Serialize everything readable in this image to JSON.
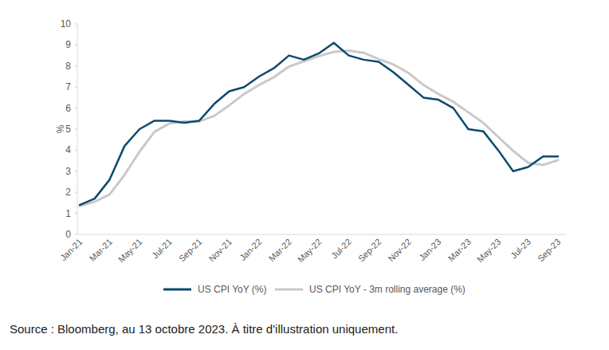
{
  "chart_data": {
    "type": "line",
    "y_label": "%",
    "source": "Source : Bloomberg, au 13 octobre 2023. À titre d'illustration uniquement.",
    "categories": [
      "Jan-21",
      null,
      "Mar-21",
      null,
      "May-21",
      null,
      "Jul-21",
      null,
      "Sep-21",
      null,
      "Nov-21",
      null,
      "Jan-22",
      null,
      "Mar-22",
      null,
      "May-22",
      null,
      "Jul-22",
      null,
      "Sep-22",
      null,
      "Nov-22",
      null,
      "Jan-23",
      null,
      "Mar-23",
      null,
      "May-23",
      null,
      "Jul-23",
      null,
      "Sep-23"
    ],
    "series": [
      {
        "name": "US CPI YoY (%)",
        "color": "#0b4a70",
        "values": [
          1.4,
          1.7,
          2.6,
          4.2,
          5.0,
          5.4,
          5.4,
          5.3,
          5.4,
          6.2,
          6.8,
          7.0,
          7.5,
          7.9,
          8.5,
          8.3,
          8.6,
          9.1,
          8.5,
          8.3,
          8.2,
          7.7,
          7.1,
          6.5,
          6.4,
          6.0,
          5.0,
          4.9,
          4.0,
          3.0,
          3.2,
          3.7,
          3.7
        ]
      },
      {
        "name": "US CPI YoY - 3m rolling average (%)",
        "color": "#c9c9c9",
        "values": [
          1.35,
          1.55,
          1.9,
          2.83,
          3.93,
          4.87,
          5.27,
          5.37,
          5.37,
          5.63,
          6.13,
          6.67,
          7.1,
          7.47,
          7.97,
          8.23,
          8.47,
          8.67,
          8.73,
          8.63,
          8.33,
          8.07,
          7.67,
          7.1,
          6.67,
          6.3,
          5.8,
          5.3,
          4.63,
          3.97,
          3.4,
          3.3,
          3.53
        ]
      }
    ],
    "ylim": [
      0,
      10
    ],
    "yticks": [
      0,
      1,
      2,
      3,
      4,
      5,
      6,
      7,
      8,
      9,
      10
    ],
    "grid": false,
    "legend": "bottom"
  }
}
